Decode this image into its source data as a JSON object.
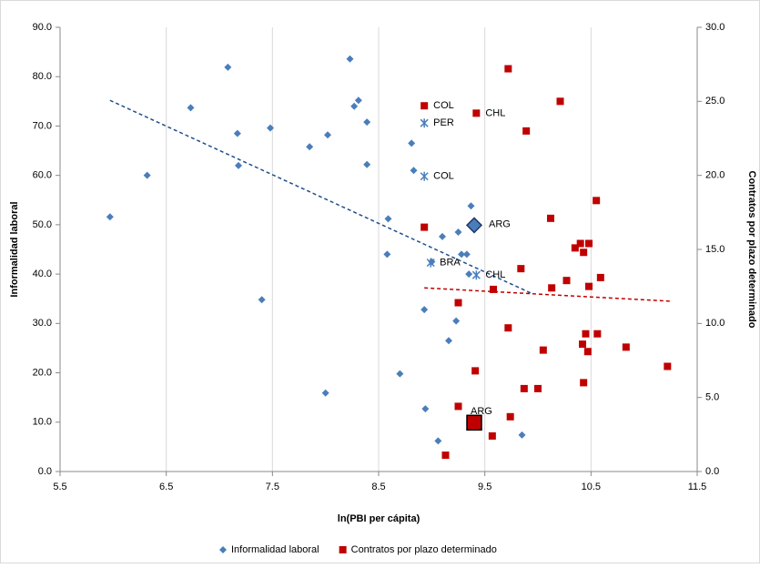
{
  "chart_data": {
    "type": "scatter",
    "x_label": "ln(PBI per cápita)",
    "y_label": "Informalidad laboral",
    "y2_label": "Contratos por plazo determinado",
    "xlim": [
      5.5,
      11.5
    ],
    "xticks": [
      5.5,
      6.5,
      7.5,
      8.5,
      9.5,
      10.5,
      11.5
    ],
    "ylim": [
      0,
      90
    ],
    "yticks": [
      {
        "value": 0,
        "label": "0.0"
      },
      {
        "value": 10,
        "label": "10.0"
      },
      {
        "value": 20,
        "label": "20.0"
      },
      {
        "value": 30,
        "label": "30.0"
      },
      {
        "value": 40,
        "label": "40.0"
      },
      {
        "value": 50,
        "label": "50.0"
      },
      {
        "value": 60,
        "label": "60.0"
      },
      {
        "value": 70,
        "label": "70.0"
      },
      {
        "value": 80,
        "label": "80.0"
      },
      {
        "value": 90,
        "label": "90.0"
      }
    ],
    "y2lim": [
      0,
      30
    ],
    "y2ticks": [
      {
        "value": 0,
        "label": "0.0"
      },
      {
        "value": 5,
        "label": "5.0"
      },
      {
        "value": 10,
        "label": "10.0"
      },
      {
        "value": 15,
        "label": "15.0"
      },
      {
        "value": 20,
        "label": "20.0"
      },
      {
        "value": 25,
        "label": "25.0"
      },
      {
        "value": 30,
        "label": "30.0"
      }
    ],
    "grid": "x",
    "legend": "bottom",
    "series": [
      {
        "name": "Informalidad laboral",
        "color": "#4a7ebb",
        "marker": "diamond",
        "x": [
          5.97,
          6.32,
          6.73,
          7.08,
          7.17,
          7.18,
          7.48,
          7.4,
          7.85,
          8.0,
          8.02,
          8.23,
          8.27,
          8.31,
          8.39,
          8.39,
          8.81,
          8.83,
          8.59,
          8.58,
          8.7,
          8.93,
          8.94,
          9.06,
          9.1,
          9.16,
          9.23,
          9.25,
          9.28,
          9.33,
          9.35,
          9.37,
          9.85,
          9.0
        ],
        "values": [
          51.6,
          60.0,
          73.7,
          81.9,
          68.5,
          62.0,
          69.6,
          34.8,
          65.8,
          15.9,
          68.2,
          83.6,
          74.0,
          75.2,
          70.8,
          62.2,
          66.5,
          61.0,
          51.2,
          44.0,
          19.8,
          32.8,
          12.7,
          6.2,
          47.6,
          26.5,
          30.5,
          48.5,
          44.0,
          44.0,
          40.0,
          53.8,
          7.4,
          42.5
        ]
      },
      {
        "name": "Contratos por plazo determinado",
        "color": "#c00000",
        "marker": "square",
        "axis": "y2",
        "x": [
          9.72,
          10.21,
          9.89,
          10.55,
          10.12,
          8.93,
          10.4,
          10.48,
          10.35,
          10.43,
          10.59,
          9.84,
          10.27,
          10.48,
          10.13,
          9.58,
          9.25,
          9.72,
          10.45,
          10.56,
          10.42,
          10.47,
          10.05,
          10.83,
          11.22,
          9.41,
          10.43,
          9.87,
          10.0,
          9.25,
          9.74,
          9.57,
          9.13
        ],
        "values": [
          27.2,
          25.0,
          23.0,
          18.3,
          17.1,
          16.5,
          15.4,
          15.4,
          15.1,
          14.8,
          13.1,
          13.7,
          12.9,
          12.5,
          12.4,
          12.3,
          11.4,
          9.7,
          9.3,
          9.3,
          8.6,
          8.1,
          8.2,
          8.4,
          7.1,
          6.8,
          6.0,
          5.6,
          5.6,
          4.4,
          3.7,
          2.4,
          1.1
        ]
      }
    ],
    "annotations": [
      {
        "text": "PER",
        "x": 8.93,
        "y": 70.6,
        "marker": "star"
      },
      {
        "text": "COL",
        "x": 8.93,
        "y": 59.8,
        "marker": "star"
      },
      {
        "text": "BRA",
        "x": 8.99,
        "y": 42.3,
        "marker": "star"
      },
      {
        "text": "CHL",
        "x": 9.42,
        "y": 39.8,
        "marker": "star"
      },
      {
        "text": "ARG",
        "x": 9.4,
        "y": 49.9,
        "marker": "big-diamond"
      },
      {
        "text": "COL",
        "x": 8.93,
        "y": 24.7,
        "marker": "square",
        "axis": "y2"
      },
      {
        "text": "CHL",
        "x": 9.42,
        "y": 24.2,
        "marker": "square",
        "axis": "y2"
      },
      {
        "text": "ARG",
        "x": 9.4,
        "y": 3.3,
        "marker": "big-square",
        "axis": "y2"
      }
    ],
    "trendlines": [
      {
        "color": "#1f4e8c",
        "x": [
          5.97,
          9.95
        ],
        "y": [
          75.2,
          36.0
        ]
      },
      {
        "color": "#c00000",
        "axis": "y2",
        "x": [
          8.93,
          11.25
        ],
        "y": [
          12.4,
          11.5
        ]
      }
    ]
  }
}
